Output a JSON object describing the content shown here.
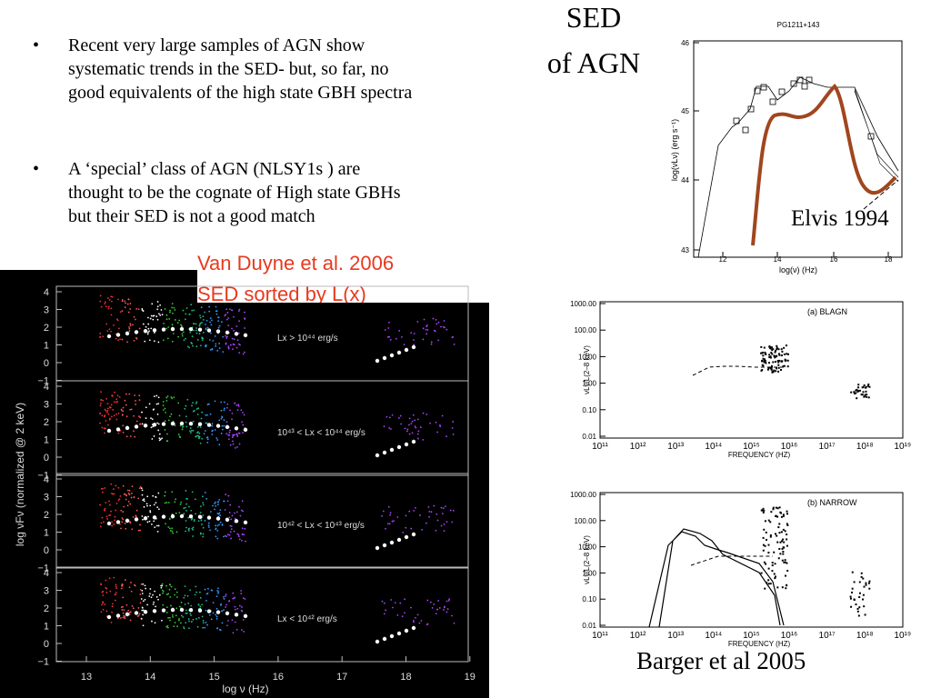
{
  "slide": {
    "title": [
      "SED",
      "of AGN"
    ],
    "bullets": [
      [
        "Recent very large samples of AGN show",
        "systematic trends in the SED- but, so far, no",
        "good equivalents of the high state GBH spectra"
      ],
      [
        "A ‘special’ class of AGN (NLSY1s ) are",
        "thought to be the cognate of High state GBHs",
        "but their SED is not a good match"
      ]
    ],
    "captions": {
      "van_duyne": [
        "Van Duyne et al. 2006",
        "SED sorted by L(x)"
      ],
      "elvis": "Elvis 1994",
      "barger": "Barger et al 2005"
    }
  },
  "figures": {
    "elvis": {
      "title": "PG1211+143",
      "y_label": "log(νLν) (erg s⁻¹)",
      "x_label": "log(ν) (Hz)",
      "yticks": [
        "46",
        "45",
        "44",
        "43"
      ],
      "xticks": [
        "12",
        "14",
        "16",
        "18"
      ]
    },
    "van_duyne": {
      "y_label": "log νFν (normalized @ 2 keV)",
      "x_label": "log ν (Hz)",
      "xticks": [
        "13",
        "14",
        "15",
        "16",
        "17",
        "18",
        "19"
      ],
      "yticks": [
        "4",
        "3",
        "2",
        "1",
        "0",
        "−1"
      ],
      "panels": [
        "Lx > 10⁴⁴ erg/s",
        "10⁴³ < Lx < 10⁴⁴ erg/s",
        "10⁴² < Lx < 10⁴³ erg/s",
        "Lx < 10⁴² erg/s"
      ]
    },
    "barger": {
      "y_label": "νLν/L(2–8 keV)",
      "x_label": "FREQUENCY (HZ)",
      "yticks": [
        "1000.00",
        "100.00",
        "10.00",
        "1.00",
        "0.10",
        "0.01"
      ],
      "xticks": [
        "10¹¹",
        "10¹²",
        "10¹³",
        "10¹⁴",
        "10¹⁵",
        "10¹⁶",
        "10¹⁷",
        "10¹⁸",
        "10¹⁹"
      ],
      "panels": [
        "(a) BLAGN",
        "(b) NARROW"
      ]
    }
  }
}
